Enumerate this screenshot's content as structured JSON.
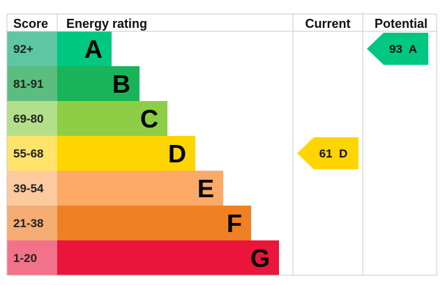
{
  "headers": {
    "score": "Score",
    "rating": "Energy rating",
    "current": "Current",
    "potential": "Potential"
  },
  "chart_data": {
    "type": "table",
    "bands": [
      {
        "letter": "A",
        "range": "92+",
        "color": "#00c781",
        "score_color": "#5ec6a3"
      },
      {
        "letter": "B",
        "range": "81-91",
        "color": "#19b459",
        "score_color": "#5bbe80"
      },
      {
        "letter": "C",
        "range": "69-80",
        "color": "#8dce46",
        "score_color": "#b3df8b"
      },
      {
        "letter": "D",
        "range": "55-68",
        "color": "#ffd500",
        "score_color": "#ffe36a"
      },
      {
        "letter": "E",
        "range": "39-54",
        "color": "#fcaa65",
        "score_color": "#fdcaa0"
      },
      {
        "letter": "F",
        "range": "21-38",
        "color": "#ef8023",
        "score_color": "#f5ad73"
      },
      {
        "letter": "G",
        "range": "1-20",
        "color": "#e9153b",
        "score_color": "#f27389"
      }
    ],
    "current": {
      "score": 61,
      "band": "D",
      "label": "61  D",
      "color": "#ffd500"
    },
    "potential": {
      "score": 93,
      "band": "A",
      "label": "93  A",
      "color": "#00c781"
    }
  }
}
